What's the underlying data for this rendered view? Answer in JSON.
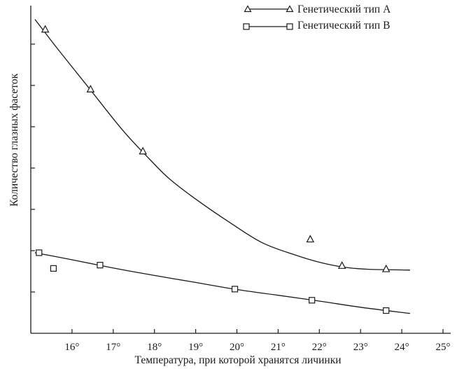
{
  "chart_data": {
    "type": "line",
    "title": "",
    "xlabel": "Температура, при которой хранятся личинки",
    "ylabel": "Количество глазных фасеток",
    "x_ticks": [
      "16°",
      "17°",
      "18°",
      "19°",
      "20°",
      "21°",
      "22°",
      "23°",
      "24°",
      "25°"
    ],
    "x_tick_values": [
      16,
      17,
      18,
      19,
      20,
      21,
      22,
      23,
      24,
      25
    ],
    "xlim": [
      15,
      25
    ],
    "ylim": [
      0,
      8
    ],
    "y_ticks_labeled": false,
    "y_tick_values": [
      1,
      2,
      3,
      4,
      5,
      6,
      7
    ],
    "grid": false,
    "legend_position": "top-right",
    "series": [
      {
        "name": "Генетический тип А",
        "marker": "triangle",
        "points": [
          {
            "x": 15.35,
            "y": 7.35
          },
          {
            "x": 16.45,
            "y": 5.9
          },
          {
            "x": 17.72,
            "y": 4.4
          },
          {
            "x": 21.78,
            "y": 2.27
          },
          {
            "x": 22.55,
            "y": 1.63
          },
          {
            "x": 23.62,
            "y": 1.55
          }
        ],
        "curve": [
          {
            "x": 15.1,
            "y": 7.6
          },
          {
            "x": 15.6,
            "y": 6.95
          },
          {
            "x": 16.4,
            "y": 5.95
          },
          {
            "x": 17.2,
            "y": 4.95
          },
          {
            "x": 17.8,
            "y": 4.3
          },
          {
            "x": 18.35,
            "y": 3.75
          },
          {
            "x": 19.0,
            "y": 3.25
          },
          {
            "x": 19.8,
            "y": 2.7
          },
          {
            "x": 20.6,
            "y": 2.2
          },
          {
            "x": 21.4,
            "y": 1.9
          },
          {
            "x": 22.0,
            "y": 1.72
          },
          {
            "x": 22.6,
            "y": 1.6
          },
          {
            "x": 23.2,
            "y": 1.55
          },
          {
            "x": 24.2,
            "y": 1.53
          }
        ]
      },
      {
        "name": "Генетический тип В",
        "marker": "square",
        "points": [
          {
            "x": 15.2,
            "y": 1.95
          },
          {
            "x": 15.55,
            "y": 1.57
          },
          {
            "x": 16.68,
            "y": 1.65
          },
          {
            "x": 19.95,
            "y": 1.07
          },
          {
            "x": 21.82,
            "y": 0.8
          },
          {
            "x": 23.62,
            "y": 0.55
          }
        ],
        "curve": [
          {
            "x": 15.1,
            "y": 1.95
          },
          {
            "x": 16.0,
            "y": 1.78
          },
          {
            "x": 17.0,
            "y": 1.58
          },
          {
            "x": 18.0,
            "y": 1.4
          },
          {
            "x": 19.0,
            "y": 1.23
          },
          {
            "x": 20.0,
            "y": 1.06
          },
          {
            "x": 21.0,
            "y": 0.92
          },
          {
            "x": 22.0,
            "y": 0.78
          },
          {
            "x": 23.0,
            "y": 0.63
          },
          {
            "x": 24.2,
            "y": 0.48
          }
        ]
      }
    ]
  }
}
